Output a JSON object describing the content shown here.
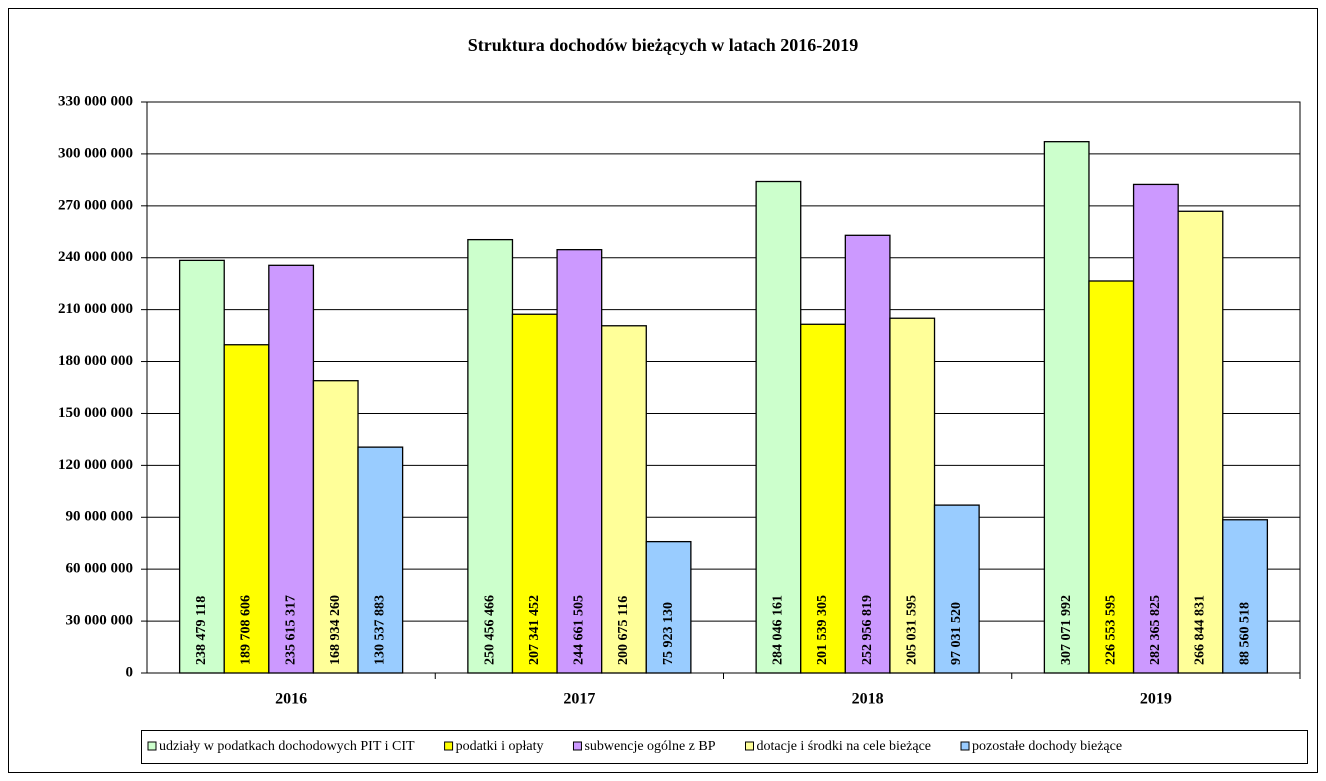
{
  "chart_data": {
    "type": "bar",
    "title": "Struktura dochodów bieżących w latach 2016-2019",
    "categories": [
      "2016",
      "2017",
      "2018",
      "2019"
    ],
    "series": [
      {
        "name": "udziały w podatkach dochodowych PIT i CIT",
        "color": "#ccffcc",
        "values": [
          238479118,
          250456466,
          284046161,
          307071992
        ],
        "value_labels": [
          "238 479 118",
          "250 456 466",
          "284 046 161",
          "307 071 992"
        ]
      },
      {
        "name": "podatki i opłaty",
        "color": "#ffff00",
        "values": [
          189708606,
          207341452,
          201539305,
          226553595
        ],
        "value_labels": [
          "189 708 606",
          "207 341 452",
          "201 539 305",
          "226 553 595"
        ]
      },
      {
        "name": "subwencje ogólne z BP",
        "color": "#cc99ff",
        "values": [
          235615317,
          244661505,
          252956819,
          282365825
        ],
        "value_labels": [
          "235 615 317",
          "244 661 505",
          "252 956 819",
          "282 365 825"
        ]
      },
      {
        "name": "dotacje i środki na cele bieżące",
        "color": "#ffff99",
        "values": [
          168934260,
          200675116,
          205031595,
          266844831
        ],
        "value_labels": [
          "168 934 260",
          "200 675 116",
          "205 031 595",
          "266 844 831"
        ]
      },
      {
        "name": "pozostałe dochody bieżące",
        "color": "#99ccff",
        "values": [
          130537883,
          75923130,
          97031520,
          88560518
        ],
        "value_labels": [
          "130 537 883",
          "75 923 130",
          "97 031 520",
          "88 560 518"
        ]
      }
    ],
    "ylim": [
      0,
      330000000
    ],
    "yticks": [
      0,
      {
        "value": 30000000,
        "label": "30 000 000"
      },
      {
        "value": 60000000,
        "label": "60 000 000"
      },
      {
        "value": 90000000,
        "label": "90 000 000"
      },
      {
        "value": 120000000,
        "label": "120 000 000"
      },
      {
        "value": 150000000,
        "label": "150 000 000"
      },
      {
        "value": 180000000,
        "label": "180 000 000"
      },
      {
        "value": 210000000,
        "label": "210 000 000"
      },
      {
        "value": 240000000,
        "label": "240 000 000"
      },
      {
        "value": 270000000,
        "label": "270 000 000"
      },
      {
        "value": 300000000,
        "label": "300 000 000"
      },
      {
        "value": 330000000,
        "label": "330 000 000"
      }
    ],
    "grid": true,
    "legend": "bottom"
  }
}
